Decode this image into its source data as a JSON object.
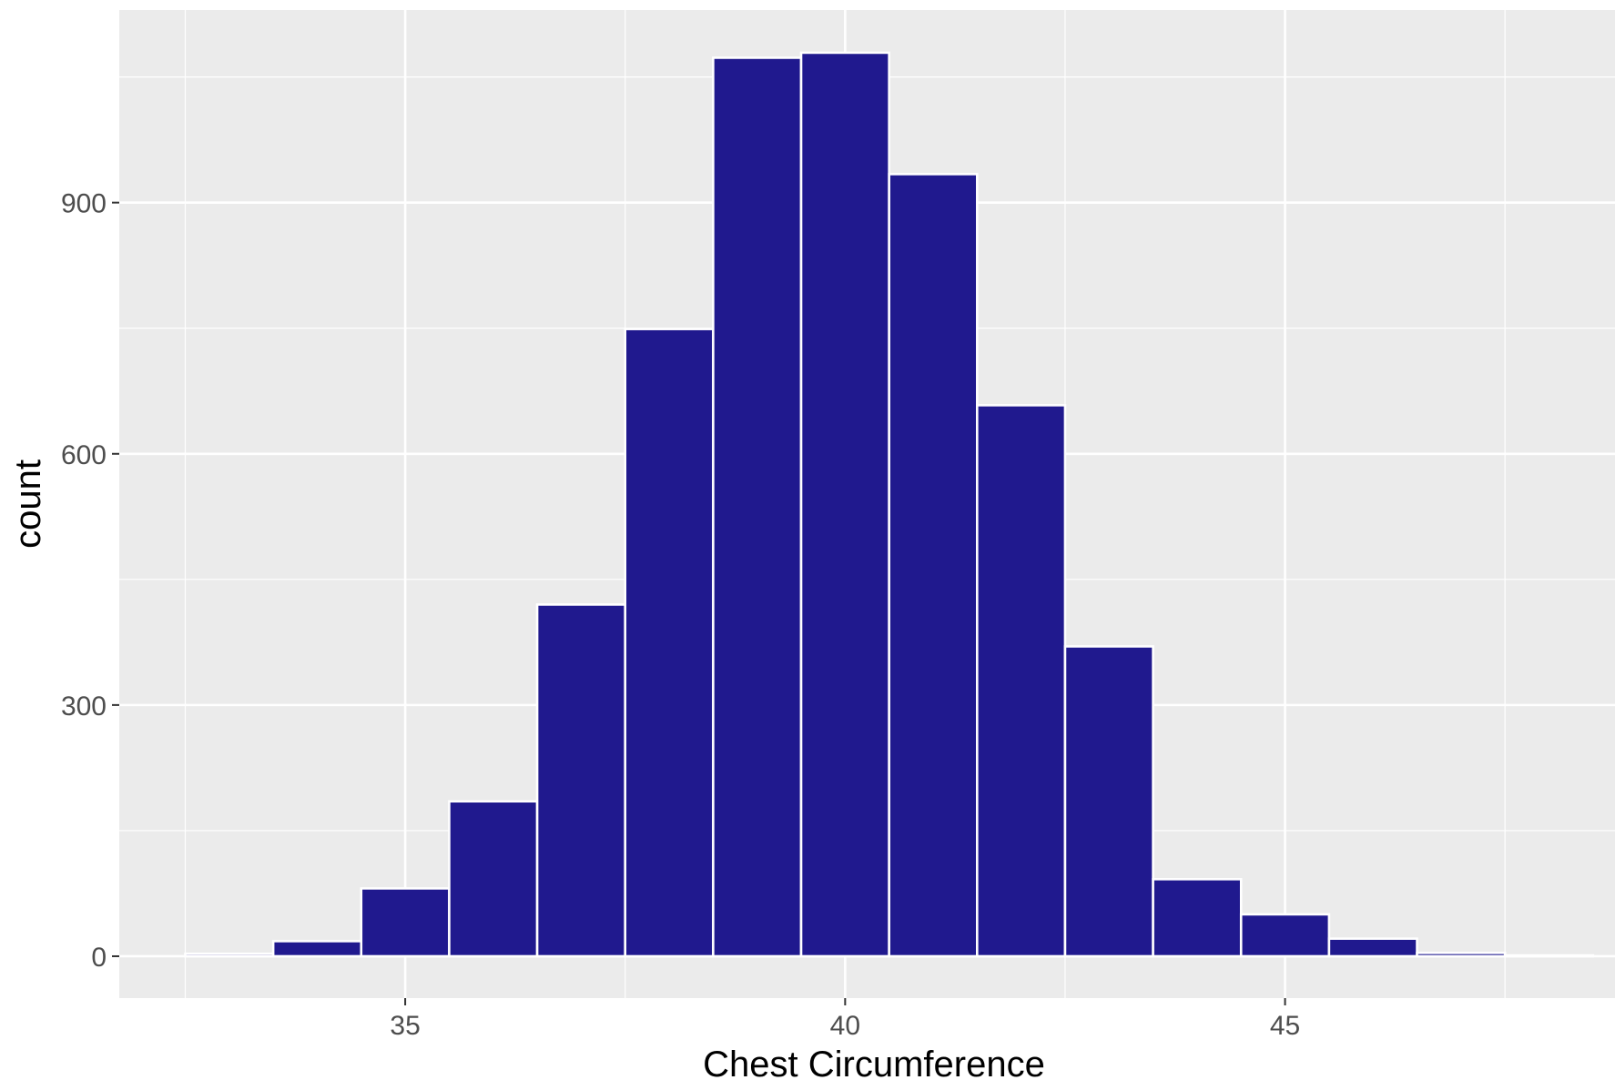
{
  "chart_data": {
    "type": "bar",
    "subtype": "histogram",
    "xlabel": "Chest Circumference",
    "ylabel": "count",
    "xlim": [
      31.75,
      48.75
    ],
    "ylim": [
      -50,
      1130
    ],
    "x_ticks": [
      35,
      40,
      45
    ],
    "y_ticks": [
      0,
      300,
      600,
      900
    ],
    "bin_width": 1,
    "bins": [
      {
        "center": 33,
        "count": 3
      },
      {
        "center": 34,
        "count": 18
      },
      {
        "center": 35,
        "count": 81
      },
      {
        "center": 36,
        "count": 185
      },
      {
        "center": 37,
        "count": 420
      },
      {
        "center": 38,
        "count": 749
      },
      {
        "center": 39,
        "count": 1073
      },
      {
        "center": 40,
        "count": 1079
      },
      {
        "center": 41,
        "count": 934
      },
      {
        "center": 42,
        "count": 658
      },
      {
        "center": 43,
        "count": 370
      },
      {
        "center": 44,
        "count": 92
      },
      {
        "center": 45,
        "count": 50
      },
      {
        "center": 46,
        "count": 21
      },
      {
        "center": 47,
        "count": 4
      },
      {
        "center": 48,
        "count": 1
      }
    ],
    "grid": true,
    "colors": {
      "bar_fill": "#20198E",
      "bar_outline": "#FFFFFF",
      "panel_background": "#EBEBEB",
      "grid": "#FFFFFF"
    }
  }
}
